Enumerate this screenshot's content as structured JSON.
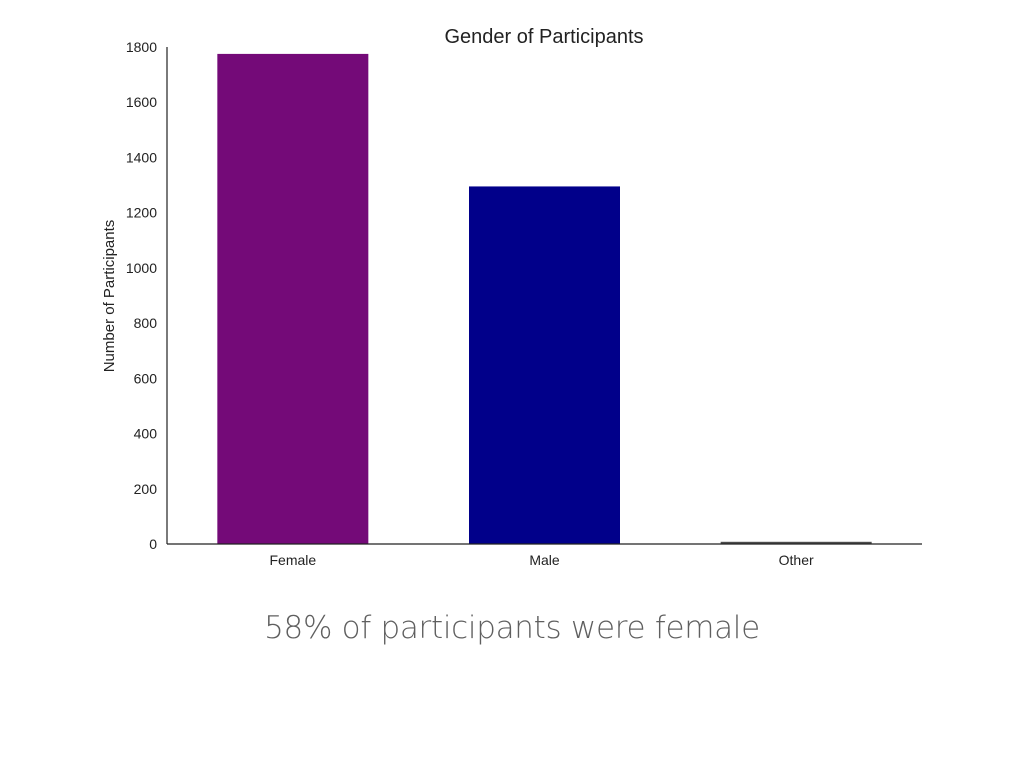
{
  "chart_data": {
    "type": "bar",
    "title": "Gender of Participants",
    "xlabel": "",
    "ylabel": "Number of Participants",
    "categories": [
      "Female",
      "Male",
      "Other"
    ],
    "values": [
      1775,
      1295,
      8
    ],
    "colors": [
      "#740a78",
      "#01008a",
      "#4c4c4c"
    ],
    "ylim": [
      0,
      1800
    ],
    "yticks": [
      0,
      200,
      400,
      600,
      800,
      1000,
      1200,
      1400,
      1600,
      1800
    ],
    "grid": false,
    "legend": false
  },
  "caption": "58% of participants were female"
}
